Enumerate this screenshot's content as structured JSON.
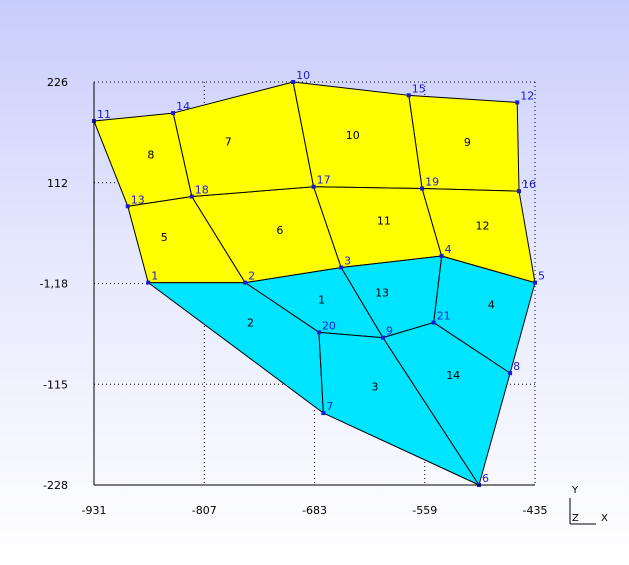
{
  "chart_data": {
    "type": "mesh",
    "x_axis": {
      "min": -931,
      "max": -435,
      "ticks": [
        "-931",
        "-807",
        "-683",
        "-559",
        "-435"
      ]
    },
    "y_axis": {
      "min": -228,
      "max": 226,
      "ticks": [
        "226",
        "112",
        "-1,18",
        "-115",
        "-228"
      ]
    },
    "grid": true,
    "colors": {
      "yellow_region": "#ffff00",
      "cyan_region": "#00e5ff",
      "node_label": "#1a1ad6",
      "edge": "#000000"
    },
    "nodes": [
      {
        "id": "1",
        "x": -870,
        "y": 0
      },
      {
        "id": "2",
        "x": -761,
        "y": 0
      },
      {
        "id": "3",
        "x": -653,
        "y": 17
      },
      {
        "id": "4",
        "x": -540,
        "y": 30
      },
      {
        "id": "5",
        "x": -435,
        "y": 0
      },
      {
        "id": "6",
        "x": -498,
        "y": -228
      },
      {
        "id": "7",
        "x": -673,
        "y": -147
      },
      {
        "id": "8",
        "x": -463,
        "y": -102
      },
      {
        "id": "9",
        "x": -606,
        "y": -62
      },
      {
        "id": "10",
        "x": -707,
        "y": 226
      },
      {
        "id": "11",
        "x": -931,
        "y": 182
      },
      {
        "id": "12",
        "x": -455,
        "y": 203
      },
      {
        "id": "13",
        "x": -893,
        "y": 86
      },
      {
        "id": "14",
        "x": -842,
        "y": 191
      },
      {
        "id": "15",
        "x": -577,
        "y": 211
      },
      {
        "id": "16",
        "x": -453,
        "y": 103
      },
      {
        "id": "17",
        "x": -684,
        "y": 108
      },
      {
        "id": "18",
        "x": -821,
        "y": 97
      },
      {
        "id": "19",
        "x": -562,
        "y": 106
      },
      {
        "id": "20",
        "x": -678,
        "y": -56
      },
      {
        "id": "21",
        "x": -549,
        "y": -45
      }
    ],
    "elements": [
      {
        "id": "1",
        "region": "cyan",
        "nodes": [
          "2",
          "3",
          "9",
          "20"
        ]
      },
      {
        "id": "2",
        "region": "cyan",
        "nodes": [
          "1",
          "2",
          "20",
          "7"
        ]
      },
      {
        "id": "3",
        "region": "cyan",
        "nodes": [
          "20",
          "9",
          "6",
          "7"
        ]
      },
      {
        "id": "4",
        "region": "cyan",
        "nodes": [
          "4",
          "5",
          "8",
          "21"
        ]
      },
      {
        "id": "5",
        "region": "yellow",
        "nodes": [
          "13",
          "18",
          "2",
          "1"
        ]
      },
      {
        "id": "6",
        "region": "yellow",
        "nodes": [
          "18",
          "17",
          "3",
          "2"
        ]
      },
      {
        "id": "7",
        "region": "yellow",
        "nodes": [
          "14",
          "10",
          "17",
          "18"
        ]
      },
      {
        "id": "8",
        "region": "yellow",
        "nodes": [
          "11",
          "14",
          "18",
          "13"
        ]
      },
      {
        "id": "9",
        "region": "yellow",
        "nodes": [
          "15",
          "12",
          "16",
          "19"
        ]
      },
      {
        "id": "10",
        "region": "yellow",
        "nodes": [
          "10",
          "15",
          "19",
          "17"
        ]
      },
      {
        "id": "11",
        "region": "yellow",
        "nodes": [
          "17",
          "19",
          "4",
          "3"
        ]
      },
      {
        "id": "12",
        "region": "yellow",
        "nodes": [
          "19",
          "16",
          "5",
          "4"
        ]
      },
      {
        "id": "13",
        "region": "cyan",
        "nodes": [
          "3",
          "4",
          "21",
          "9"
        ]
      },
      {
        "id": "14",
        "region": "cyan",
        "nodes": [
          "9",
          "21",
          "8",
          "6"
        ]
      }
    ],
    "element_label_positions": [
      {
        "id": "1",
        "x": -675,
        "y": -20
      },
      {
        "id": "2",
        "x": -755,
        "y": -46
      },
      {
        "id": "3",
        "x": -615,
        "y": -118
      },
      {
        "id": "4",
        "x": -484,
        "y": -26
      },
      {
        "id": "5",
        "x": -852,
        "y": 50
      },
      {
        "id": "6",
        "x": -722,
        "y": 58
      },
      {
        "id": "7",
        "x": -780,
        "y": 158
      },
      {
        "id": "8",
        "x": -867,
        "y": 143
      },
      {
        "id": "9",
        "x": -511,
        "y": 157
      },
      {
        "id": "10",
        "x": -640,
        "y": 165
      },
      {
        "id": "11",
        "x": -605,
        "y": 69
      },
      {
        "id": "12",
        "x": -494,
        "y": 63
      },
      {
        "id": "13",
        "x": -607,
        "y": -12
      },
      {
        "id": "14",
        "x": -527,
        "y": -105
      }
    ],
    "triad": {
      "y_label": "Y",
      "z_label": "Z",
      "x_label": "X"
    }
  }
}
